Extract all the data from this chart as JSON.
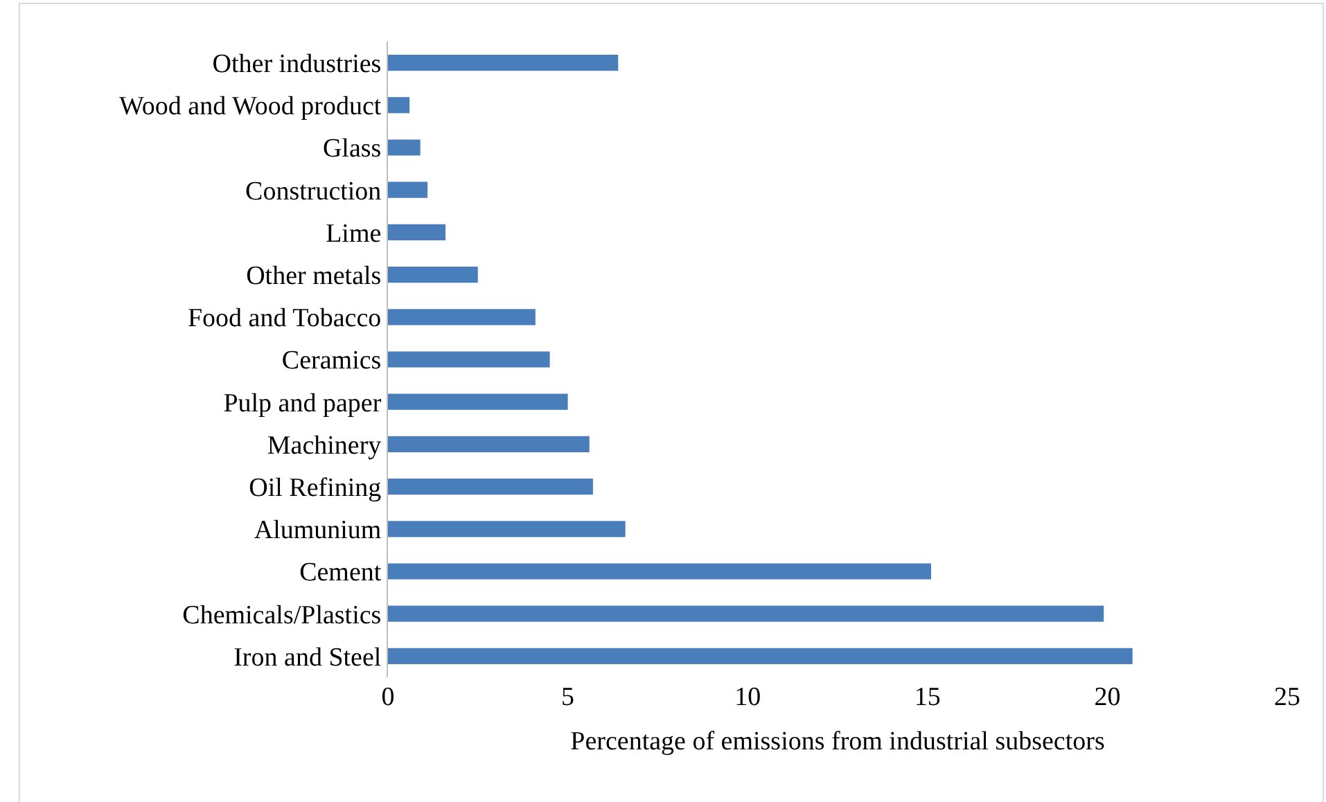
{
  "chart_data": {
    "type": "bar",
    "orientation": "horizontal",
    "xlabel": "Percentage of emissions from industrial subsectors",
    "categories": [
      "Other industries",
      "Wood and Wood product",
      "Glass",
      "Construction",
      "Lime",
      "Other metals",
      "Food and Tobacco",
      "Ceramics",
      "Pulp and paper",
      "Machinery",
      "Oil Refining",
      "Alumunium",
      "Cement",
      "Chemicals/Plastics",
      "Iron and Steel"
    ],
    "values": [
      6.4,
      0.6,
      0.9,
      1.1,
      1.6,
      2.5,
      4.1,
      4.5,
      5.0,
      5.6,
      5.7,
      6.6,
      15.1,
      19.9,
      20.7
    ],
    "color": "#4a7ebb",
    "xlim": [
      0,
      25
    ],
    "xticks": [
      0,
      5,
      10,
      15,
      20,
      25
    ],
    "legend": false
  }
}
